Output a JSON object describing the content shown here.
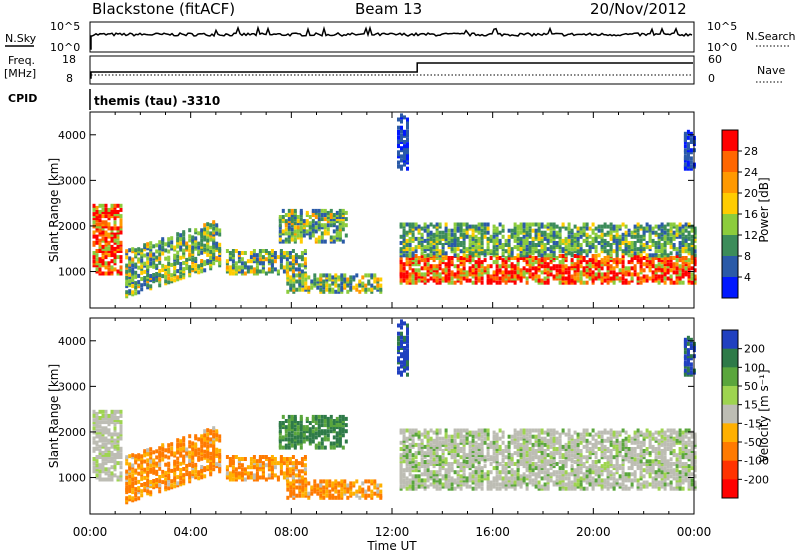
{
  "header": {
    "station": "Blackstone (fitACF)",
    "beam": "Beam 13",
    "date": "20/Nov/2012"
  },
  "summary": {
    "nsky_label": "N.Sky",
    "nsky_ticks": [
      "10^5",
      "10^0"
    ],
    "nsearch_label": "N.Search",
    "nsearch_ticks": [
      "10^5",
      "10^0"
    ],
    "freq_label_1": "Freq.",
    "freq_label_2": "[MHz]",
    "freq_ticks": [
      "18",
      "8"
    ],
    "nave_label": "Nave",
    "nave_ticks": [
      "60",
      "0"
    ],
    "cpid_label": "CPID",
    "cpid_value": "themis (tau) -3310"
  },
  "chart_data": [
    {
      "type": "heatmap",
      "name": "power",
      "ylabel": "Slant Range [km]",
      "y_ticks": [
        1000,
        2000,
        3000,
        4000
      ],
      "ylim": [
        200,
        4500
      ],
      "xlabel": "",
      "x_ticks": [
        "00:00",
        "04:00",
        "08:00",
        "12:00",
        "16:00",
        "20:00",
        "00:00"
      ],
      "xlim_hours": [
        0,
        24
      ],
      "colorbar_label": "Power [dB]",
      "colorbar_ticks": [
        "28",
        "24",
        "20",
        "16",
        "12",
        "8",
        "4"
      ],
      "colorbar_colors": [
        "#ff0000",
        "#ff6600",
        "#ff9900",
        "#ffcc00",
        "#8ccc3c",
        "#3c8c5a",
        "#2a5aa8",
        "#0018ff"
      ]
    },
    {
      "type": "heatmap",
      "name": "velocity",
      "ylabel": "Slant Range [km]",
      "y_ticks": [
        1000,
        2000,
        3000,
        4000
      ],
      "ylim": [
        200,
        4500
      ],
      "xlabel": "Time UT",
      "x_ticks": [
        "00:00",
        "04:00",
        "08:00",
        "12:00",
        "16:00",
        "20:00",
        "00:00"
      ],
      "xlim_hours": [
        0,
        24
      ],
      "colorbar_label": "Velocity [m s⁻¹]",
      "colorbar_ticks": [
        "200",
        "100",
        "50",
        "15",
        "-15",
        "-50",
        "-100",
        "-200"
      ],
      "colorbar_colors": [
        "#2040c0",
        "#2e7a48",
        "#5aa63c",
        "#9ed450",
        "#bdbdb4",
        "#ffb000",
        "#ff7a00",
        "#ff3300",
        "#ff0000"
      ]
    }
  ]
}
